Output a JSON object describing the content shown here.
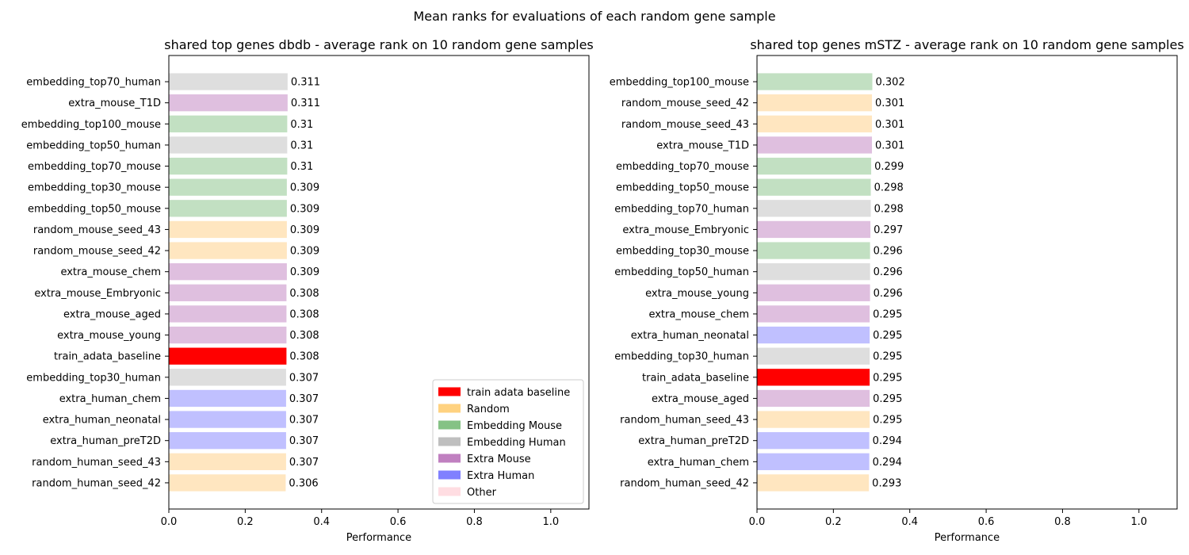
{
  "suptitle": "Mean ranks for evaluations of each random gene sample",
  "colors": {
    "train adata baseline": "#ff0000",
    "Random": "#ffe6c0",
    "Embedding Mouse": "#c2e0c2",
    "Embedding Human": "#dedede",
    "Extra Mouse": "#dfbfdf",
    "Extra Human": "#c0c0ff",
    "Other": "#ffe4e8"
  },
  "legend_colors": {
    "train adata baseline": "#ff0000",
    "Random": "#ffd280",
    "Embedding Mouse": "#85c285",
    "Embedding Human": "#bfbfbf",
    "Extra Mouse": "#c080c0",
    "Extra Human": "#8080ff",
    "Other": "#ffdde2"
  },
  "chart_data": [
    {
      "type": "bar",
      "orientation": "horizontal",
      "title": "shared top genes dbdb - average rank on 10 random gene samples",
      "xlabel": "Performance",
      "ylabel": "",
      "xlim": [
        0,
        1.1
      ],
      "xticks": [
        "0.0",
        "0.2",
        "0.4",
        "0.6",
        "0.8",
        "1.0"
      ],
      "xtick_values": [
        0,
        0.2,
        0.4,
        0.6,
        0.8,
        1.0
      ],
      "grid": false,
      "legend": {
        "placement": "lower-right",
        "entries": [
          "train adata baseline",
          "Random",
          "Embedding Mouse",
          "Embedding Human",
          "Extra Mouse",
          "Extra Human",
          "Other"
        ]
      },
      "bars": [
        {
          "label": "embedding_top70_human",
          "value": 0.311,
          "text": "0.311",
          "group": "Embedding Human"
        },
        {
          "label": "extra_mouse_T1D",
          "value": 0.311,
          "text": "0.311",
          "group": "Extra Mouse"
        },
        {
          "label": "embedding_top100_mouse",
          "value": 0.31,
          "text": "0.31",
          "group": "Embedding Mouse"
        },
        {
          "label": "embedding_top50_human",
          "value": 0.31,
          "text": "0.31",
          "group": "Embedding Human"
        },
        {
          "label": "embedding_top70_mouse",
          "value": 0.31,
          "text": "0.31",
          "group": "Embedding Mouse"
        },
        {
          "label": "embedding_top30_mouse",
          "value": 0.309,
          "text": "0.309",
          "group": "Embedding Mouse"
        },
        {
          "label": "embedding_top50_mouse",
          "value": 0.309,
          "text": "0.309",
          "group": "Embedding Mouse"
        },
        {
          "label": "random_mouse_seed_43",
          "value": 0.309,
          "text": "0.309",
          "group": "Random"
        },
        {
          "label": "random_mouse_seed_42",
          "value": 0.309,
          "text": "0.309",
          "group": "Random"
        },
        {
          "label": "extra_mouse_chem",
          "value": 0.309,
          "text": "0.309",
          "group": "Extra Mouse"
        },
        {
          "label": "extra_mouse_Embryonic",
          "value": 0.308,
          "text": "0.308",
          "group": "Extra Mouse"
        },
        {
          "label": "extra_mouse_aged",
          "value": 0.308,
          "text": "0.308",
          "group": "Extra Mouse"
        },
        {
          "label": "extra_mouse_young",
          "value": 0.308,
          "text": "0.308",
          "group": "Extra Mouse"
        },
        {
          "label": "train_adata_baseline",
          "value": 0.308,
          "text": "0.308",
          "group": "train adata baseline"
        },
        {
          "label": "embedding_top30_human",
          "value": 0.307,
          "text": "0.307",
          "group": "Embedding Human"
        },
        {
          "label": "extra_human_chem",
          "value": 0.307,
          "text": "0.307",
          "group": "Extra Human"
        },
        {
          "label": "extra_human_neonatal",
          "value": 0.307,
          "text": "0.307",
          "group": "Extra Human"
        },
        {
          "label": "extra_human_preT2D",
          "value": 0.307,
          "text": "0.307",
          "group": "Extra Human"
        },
        {
          "label": "random_human_seed_43",
          "value": 0.307,
          "text": "0.307",
          "group": "Random"
        },
        {
          "label": "random_human_seed_42",
          "value": 0.306,
          "text": "0.306",
          "group": "Random"
        }
      ]
    },
    {
      "type": "bar",
      "orientation": "horizontal",
      "title": "shared top genes mSTZ - average rank on 10 random gene samples",
      "xlabel": "Performance",
      "ylabel": "",
      "xlim": [
        0,
        1.1
      ],
      "xticks": [
        "0.0",
        "0.2",
        "0.4",
        "0.6",
        "0.8",
        "1.0"
      ],
      "xtick_values": [
        0,
        0.2,
        0.4,
        0.6,
        0.8,
        1.0
      ],
      "grid": false,
      "legend": null,
      "bars": [
        {
          "label": "embedding_top100_mouse",
          "value": 0.302,
          "text": "0.302",
          "group": "Embedding Mouse"
        },
        {
          "label": "random_mouse_seed_42",
          "value": 0.301,
          "text": "0.301",
          "group": "Random"
        },
        {
          "label": "random_mouse_seed_43",
          "value": 0.301,
          "text": "0.301",
          "group": "Random"
        },
        {
          "label": "extra_mouse_T1D",
          "value": 0.301,
          "text": "0.301",
          "group": "Extra Mouse"
        },
        {
          "label": "embedding_top70_mouse",
          "value": 0.299,
          "text": "0.299",
          "group": "Embedding Mouse"
        },
        {
          "label": "embedding_top50_mouse",
          "value": 0.298,
          "text": "0.298",
          "group": "Embedding Mouse"
        },
        {
          "label": "embedding_top70_human",
          "value": 0.298,
          "text": "0.298",
          "group": "Embedding Human"
        },
        {
          "label": "extra_mouse_Embryonic",
          "value": 0.297,
          "text": "0.297",
          "group": "Extra Mouse"
        },
        {
          "label": "embedding_top30_mouse",
          "value": 0.296,
          "text": "0.296",
          "group": "Embedding Mouse"
        },
        {
          "label": "embedding_top50_human",
          "value": 0.296,
          "text": "0.296",
          "group": "Embedding Human"
        },
        {
          "label": "extra_mouse_young",
          "value": 0.296,
          "text": "0.296",
          "group": "Extra Mouse"
        },
        {
          "label": "extra_mouse_chem",
          "value": 0.295,
          "text": "0.295",
          "group": "Extra Mouse"
        },
        {
          "label": "extra_human_neonatal",
          "value": 0.295,
          "text": "0.295",
          "group": "Extra Human"
        },
        {
          "label": "embedding_top30_human",
          "value": 0.295,
          "text": "0.295",
          "group": "Embedding Human"
        },
        {
          "label": "train_adata_baseline",
          "value": 0.295,
          "text": "0.295",
          "group": "train adata baseline"
        },
        {
          "label": "extra_mouse_aged",
          "value": 0.295,
          "text": "0.295",
          "group": "Extra Mouse"
        },
        {
          "label": "random_human_seed_43",
          "value": 0.295,
          "text": "0.295",
          "group": "Random"
        },
        {
          "label": "extra_human_preT2D",
          "value": 0.294,
          "text": "0.294",
          "group": "Extra Human"
        },
        {
          "label": "extra_human_chem",
          "value": 0.294,
          "text": "0.294",
          "group": "Extra Human"
        },
        {
          "label": "random_human_seed_42",
          "value": 0.293,
          "text": "0.293",
          "group": "Random"
        }
      ]
    }
  ]
}
